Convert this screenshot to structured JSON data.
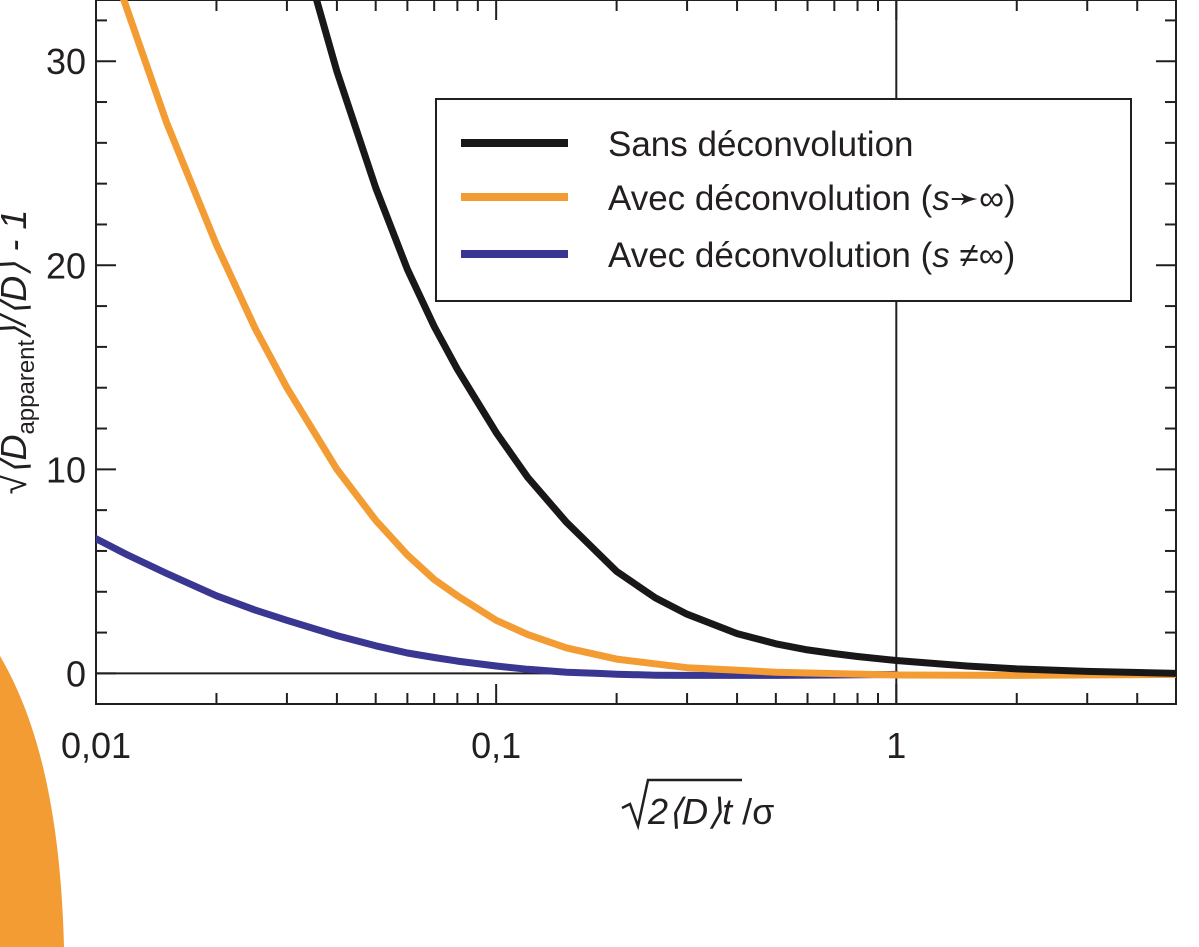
{
  "chart_data": {
    "type": "line",
    "x_scale": "log",
    "xlim": [
      0.01,
      5
    ],
    "ylim": [
      -1.5,
      33
    ],
    "x_ticks": [
      {
        "value": 0.01,
        "label": "0,01"
      },
      {
        "value": 0.1,
        "label": "0,1"
      },
      {
        "value": 1,
        "label": "1"
      }
    ],
    "y_ticks": [
      {
        "value": 0,
        "label": "0"
      },
      {
        "value": 10,
        "label": "10"
      },
      {
        "value": 20,
        "label": "20"
      },
      {
        "value": 30,
        "label": "30"
      }
    ],
    "xlabel": {
      "sqrt_part": "2⟨D⟩t",
      "rest": " /σ"
    },
    "ylabel": {
      "prefix": "√⟨D",
      "sub": "apparent",
      "suffix": "⟩/⟨D⟩ - 1"
    },
    "reference_lines": {
      "x": 1,
      "y": 0
    },
    "grid": false,
    "legend_position": "top-right",
    "series": [
      {
        "name": "Sans déconvolution",
        "color": "#1a1718",
        "x": [
          0.035,
          0.04,
          0.05,
          0.06,
          0.07,
          0.08,
          0.1,
          0.12,
          0.15,
          0.2,
          0.25,
          0.3,
          0.4,
          0.5,
          0.6,
          0.7,
          0.8,
          1.0,
          1.5,
          2.0,
          3.0,
          5.0
        ],
        "y": [
          33.5,
          29.5,
          23.8,
          19.8,
          17.0,
          14.9,
          11.8,
          9.6,
          7.4,
          5.0,
          3.7,
          2.9,
          1.95,
          1.45,
          1.15,
          0.97,
          0.83,
          0.63,
          0.36,
          0.22,
          0.1,
          0.0
        ]
      },
      {
        "name": "Avec déconvolution (s→∞)",
        "color": "#f39c33",
        "x": [
          0.0115,
          0.013,
          0.015,
          0.02,
          0.025,
          0.03,
          0.04,
          0.05,
          0.06,
          0.07,
          0.08,
          0.1,
          0.12,
          0.15,
          0.2,
          0.3,
          0.5,
          1.0,
          2.0,
          5.0
        ],
        "y": [
          33.5,
          30.5,
          27.0,
          21.0,
          16.9,
          14.0,
          10.0,
          7.5,
          5.8,
          4.6,
          3.8,
          2.6,
          1.9,
          1.25,
          0.7,
          0.28,
          0.06,
          -0.08,
          -0.1,
          -0.05
        ]
      },
      {
        "name": "Avec déconvolution (s≠∞)",
        "color": "#3a3792",
        "x": [
          0.01,
          0.012,
          0.015,
          0.02,
          0.025,
          0.03,
          0.04,
          0.05,
          0.06,
          0.07,
          0.08,
          0.1,
          0.12,
          0.15,
          0.18,
          0.2,
          0.25,
          0.3,
          0.4,
          0.5,
          0.7,
          1.0
        ],
        "y": [
          6.6,
          5.8,
          4.9,
          3.8,
          3.1,
          2.6,
          1.85,
          1.35,
          1.0,
          0.78,
          0.6,
          0.36,
          0.2,
          0.06,
          0.0,
          -0.04,
          -0.09,
          -0.1,
          -0.1,
          -0.1,
          -0.08,
          -0.05
        ]
      }
    ],
    "legend_entries": [
      {
        "text": "Sans déconvolution",
        "color": "#1a1718",
        "s_part": "",
        "symbol": ""
      },
      {
        "text": "Avec déconvolution (",
        "color": "#f39c33",
        "s_part": "s",
        "symbol": "➛∞)"
      },
      {
        "text": "Avec déconvolution (",
        "color": "#3a3792",
        "s_part": "s",
        "symbol": " ≠∞)"
      }
    ],
    "decoration_color": "#f39c33"
  }
}
